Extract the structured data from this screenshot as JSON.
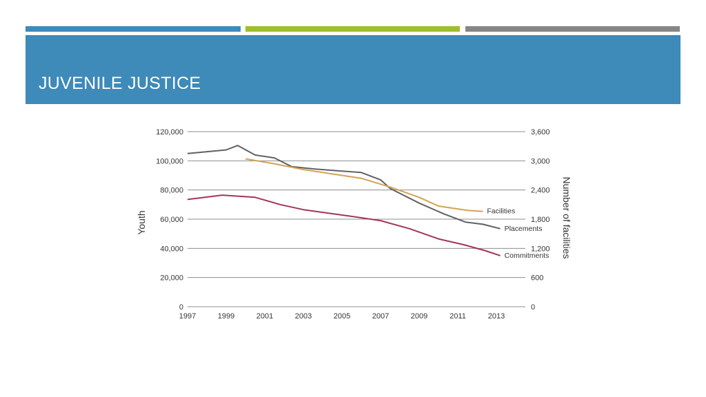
{
  "slide": {
    "title": "JUVENILE JUSTICE",
    "accent_colors": [
      "#3E8AB9",
      "#9FBE2F",
      "#868686"
    ],
    "band_color": "#3E8AB9"
  },
  "chart_data": {
    "type": "line",
    "title": "",
    "ylabel": "Youth",
    "y2label": "Number of facilities",
    "ylim": [
      0,
      120000
    ],
    "y2lim": [
      0,
      3600
    ],
    "yticks": [
      0,
      20000,
      40000,
      60000,
      80000,
      100000,
      120000
    ],
    "yticklabels": [
      "0",
      "20,000",
      "40,000",
      "60,000",
      "80,000",
      "100,000",
      "120,000"
    ],
    "y2ticks": [
      0,
      600,
      1200,
      1800,
      2400,
      3000,
      3600
    ],
    "y2ticklabels": [
      "0",
      "600",
      "1,200",
      "1,800",
      "2,400",
      "3,000",
      "3,600"
    ],
    "xlim": [
      1997,
      2014.5
    ],
    "xticks": [
      "1997",
      "1999",
      "2001",
      "2003",
      "2005",
      "2007",
      "2009",
      "2011",
      "2013"
    ],
    "grid": true,
    "series": [
      {
        "name": "Placements",
        "axis": "left",
        "color": "#5E6066",
        "x": [
          1997,
          1999,
          1999.6,
          2000.5,
          2001.5,
          2002.4,
          2003.5,
          2005,
          2006,
          2007,
          2007.5,
          2009,
          2010.3,
          2011.4,
          2012.3,
          2013.2
        ],
        "values": [
          105000,
          107500,
          110500,
          104000,
          102000,
          96000,
          94500,
          93000,
          92000,
          87000,
          81000,
          71000,
          63500,
          58000,
          56500,
          53500
        ]
      },
      {
        "name": "Facilities",
        "axis": "right",
        "color": "#D4A153",
        "x": [
          2000,
          2001.5,
          2003,
          2006,
          2007.5,
          2009,
          2010,
          2011.5,
          2012.3
        ],
        "values": [
          3040,
          2940,
          2820,
          2640,
          2460,
          2250,
          2070,
          1980,
          1960
        ]
      },
      {
        "name": "Commitments",
        "axis": "left",
        "color": "#A33553",
        "x": [
          1997,
          1998.8,
          2000.5,
          2001.8,
          2003,
          2005.2,
          2007,
          2008.5,
          2010,
          2011.3,
          2012.4,
          2013.2
        ],
        "values": [
          73500,
          76500,
          75000,
          70000,
          66500,
          62500,
          59000,
          53500,
          46500,
          42500,
          38500,
          35000
        ]
      }
    ]
  }
}
